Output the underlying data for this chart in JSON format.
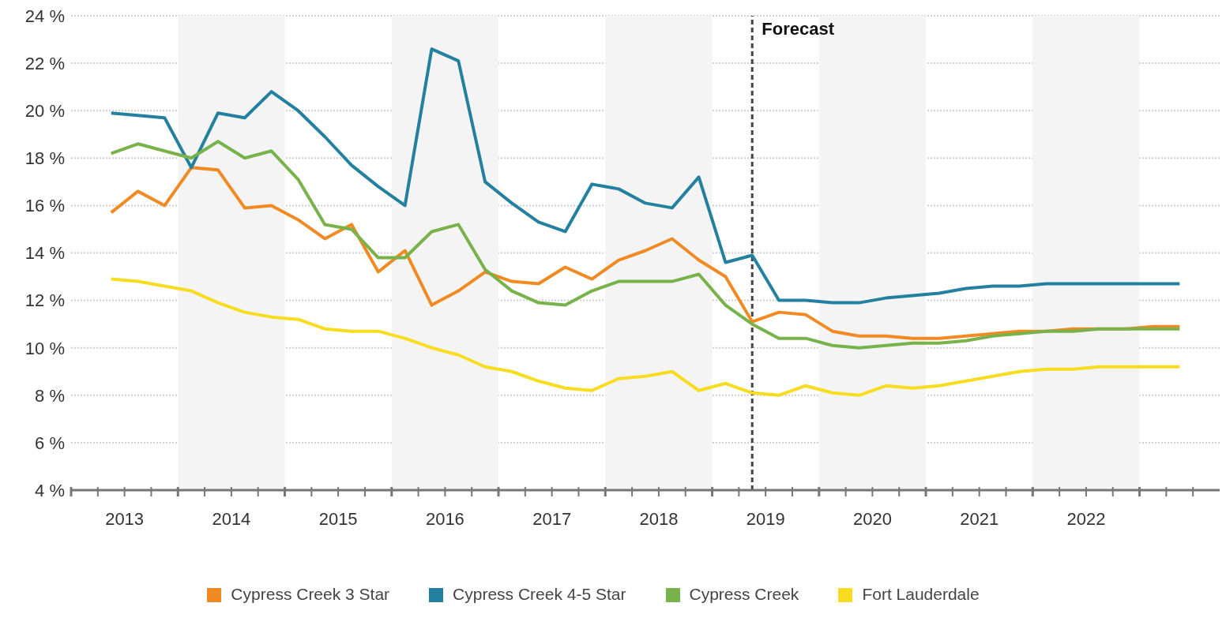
{
  "chart_data": {
    "type": "line",
    "x": [
      2013.375,
      2013.625,
      2013.875,
      2014.125,
      2014.375,
      2014.625,
      2014.875,
      2015.125,
      2015.375,
      2015.625,
      2015.875,
      2016.125,
      2016.375,
      2016.625,
      2016.875,
      2017.125,
      2017.375,
      2017.625,
      2017.875,
      2018.125,
      2018.375,
      2018.625,
      2018.875,
      2019.125,
      2019.375,
      2019.625,
      2019.875,
      2020.125,
      2020.375,
      2020.625,
      2020.875,
      2021.125,
      2021.375,
      2021.625,
      2021.875,
      2022.125,
      2022.375,
      2022.625,
      2022.875,
      2023.125,
      2023.375
    ],
    "series": [
      {
        "name": "Cypress Creek 3 Star",
        "color": "#f28a24",
        "values": [
          15.7,
          16.6,
          16.0,
          17.6,
          17.5,
          15.9,
          16.0,
          15.4,
          14.6,
          15.2,
          13.2,
          14.1,
          11.8,
          12.4,
          13.2,
          12.8,
          12.7,
          13.4,
          12.9,
          13.7,
          14.1,
          14.6,
          13.7,
          13.0,
          11.1,
          11.5,
          11.4,
          10.7,
          10.5,
          10.5,
          10.4,
          10.4,
          10.5,
          10.6,
          10.7,
          10.7,
          10.8,
          10.8,
          10.8,
          10.9,
          10.9
        ]
      },
      {
        "name": "Cypress Creek 4-5 Star",
        "color": "#23809e",
        "values": [
          19.9,
          19.8,
          19.7,
          17.6,
          19.9,
          19.7,
          20.8,
          20.0,
          18.9,
          17.7,
          16.8,
          16.0,
          22.6,
          22.1,
          17.0,
          16.1,
          15.3,
          14.9,
          16.9,
          16.7,
          16.1,
          15.9,
          17.2,
          13.6,
          13.9,
          12.0,
          12.0,
          11.9,
          11.9,
          12.1,
          12.2,
          12.3,
          12.5,
          12.6,
          12.6,
          12.7,
          12.7,
          12.7,
          12.7,
          12.7,
          12.7
        ]
      },
      {
        "name": "Cypress Creek",
        "color": "#78b24a",
        "values": [
          18.2,
          18.6,
          18.3,
          18.0,
          18.7,
          18.0,
          18.3,
          17.1,
          15.2,
          15.0,
          13.8,
          13.8,
          14.9,
          15.2,
          13.3,
          12.4,
          11.9,
          11.8,
          12.4,
          12.8,
          12.8,
          12.8,
          13.1,
          11.8,
          11.0,
          10.4,
          10.4,
          10.1,
          10.0,
          10.1,
          10.2,
          10.2,
          10.3,
          10.5,
          10.6,
          10.7,
          10.7,
          10.8,
          10.8,
          10.8,
          10.8
        ]
      },
      {
        "name": "Fort Lauderdale",
        "color": "#f7dc1f",
        "values": [
          12.9,
          12.8,
          12.6,
          12.4,
          11.9,
          11.5,
          11.3,
          11.2,
          10.8,
          10.7,
          10.7,
          10.4,
          10.0,
          9.7,
          9.2,
          9.0,
          8.6,
          8.3,
          8.2,
          8.7,
          8.8,
          9.0,
          8.2,
          8.5,
          8.1,
          8.0,
          8.4,
          8.1,
          8.0,
          8.4,
          8.3,
          8.4,
          8.6,
          8.8,
          9.0,
          9.1,
          9.1,
          9.2,
          9.2,
          9.2,
          9.2
        ]
      }
    ],
    "xlim": [
      2013,
      2023.75
    ],
    "xticks": [
      {
        "value": 2013,
        "label": null
      },
      {
        "value": 2013.25,
        "label": null
      },
      {
        "value": 2013.5,
        "label": "2013"
      },
      {
        "value": 2013.75,
        "label": null
      },
      {
        "value": 2014,
        "label": null
      },
      {
        "value": 2014.25,
        "label": null
      },
      {
        "value": 2014.5,
        "label": "2014"
      },
      {
        "value": 2014.75,
        "label": null
      },
      {
        "value": 2015,
        "label": null
      },
      {
        "value": 2015.25,
        "label": null
      },
      {
        "value": 2015.5,
        "label": "2015"
      },
      {
        "value": 2015.75,
        "label": null
      },
      {
        "value": 2016,
        "label": null
      },
      {
        "value": 2016.25,
        "label": null
      },
      {
        "value": 2016.5,
        "label": "2016"
      },
      {
        "value": 2016.75,
        "label": null
      },
      {
        "value": 2017,
        "label": null
      },
      {
        "value": 2017.25,
        "label": null
      },
      {
        "value": 2017.5,
        "label": "2017"
      },
      {
        "value": 2017.75,
        "label": null
      },
      {
        "value": 2018,
        "label": null
      },
      {
        "value": 2018.25,
        "label": null
      },
      {
        "value": 2018.5,
        "label": "2018"
      },
      {
        "value": 2018.75,
        "label": null
      },
      {
        "value": 2019,
        "label": null
      },
      {
        "value": 2019.25,
        "label": null
      },
      {
        "value": 2019.5,
        "label": "2019"
      },
      {
        "value": 2019.75,
        "label": null
      },
      {
        "value": 2020,
        "label": null
      },
      {
        "value": 2020.25,
        "label": null
      },
      {
        "value": 2020.5,
        "label": "2020"
      },
      {
        "value": 2020.75,
        "label": null
      },
      {
        "value": 2021,
        "label": null
      },
      {
        "value": 2021.25,
        "label": null
      },
      {
        "value": 2021.5,
        "label": "2021"
      },
      {
        "value": 2021.75,
        "label": null
      },
      {
        "value": 2022,
        "label": null
      },
      {
        "value": 2022.25,
        "label": null
      },
      {
        "value": 2022.5,
        "label": "2022"
      },
      {
        "value": 2022.75,
        "label": null
      },
      {
        "value": 2023,
        "label": null
      },
      {
        "value": 2023.25,
        "label": null
      },
      {
        "value": 2023.5,
        "label": null
      }
    ],
    "ylim": [
      4,
      24
    ],
    "yticks": [
      {
        "value": 4,
        "label": "4 %"
      },
      {
        "value": 6,
        "label": "6 %"
      },
      {
        "value": 8,
        "label": "8 %"
      },
      {
        "value": 10,
        "label": "10 %"
      },
      {
        "value": 12,
        "label": "12 %"
      },
      {
        "value": 14,
        "label": "14 %"
      },
      {
        "value": 16,
        "label": "16 %"
      },
      {
        "value": 18,
        "label": "18 %"
      },
      {
        "value": 20,
        "label": "20 %"
      },
      {
        "value": 22,
        "label": "22 %"
      },
      {
        "value": 24,
        "label": "24 %"
      }
    ],
    "grid": "y",
    "legend": "bottom",
    "marker": "none",
    "line_style": "solid",
    "ref_lines": [
      {
        "axis": "x",
        "value": 2019.375,
        "label": "Forecast",
        "color": "#444444",
        "line_style": "dashed"
      }
    ],
    "bands": [
      {
        "axis": "x",
        "from": 2014,
        "to": 2015,
        "color": "#f4f4f4"
      },
      {
        "axis": "x",
        "from": 2016,
        "to": 2017,
        "color": "#f4f4f4"
      },
      {
        "axis": "x",
        "from": 2018,
        "to": 2019,
        "color": "#f4f4f4"
      },
      {
        "axis": "x",
        "from": 2020,
        "to": 2021,
        "color": "#f4f4f4"
      },
      {
        "axis": "x",
        "from": 2022,
        "to": 2023,
        "color": "#f4f4f4"
      }
    ]
  }
}
